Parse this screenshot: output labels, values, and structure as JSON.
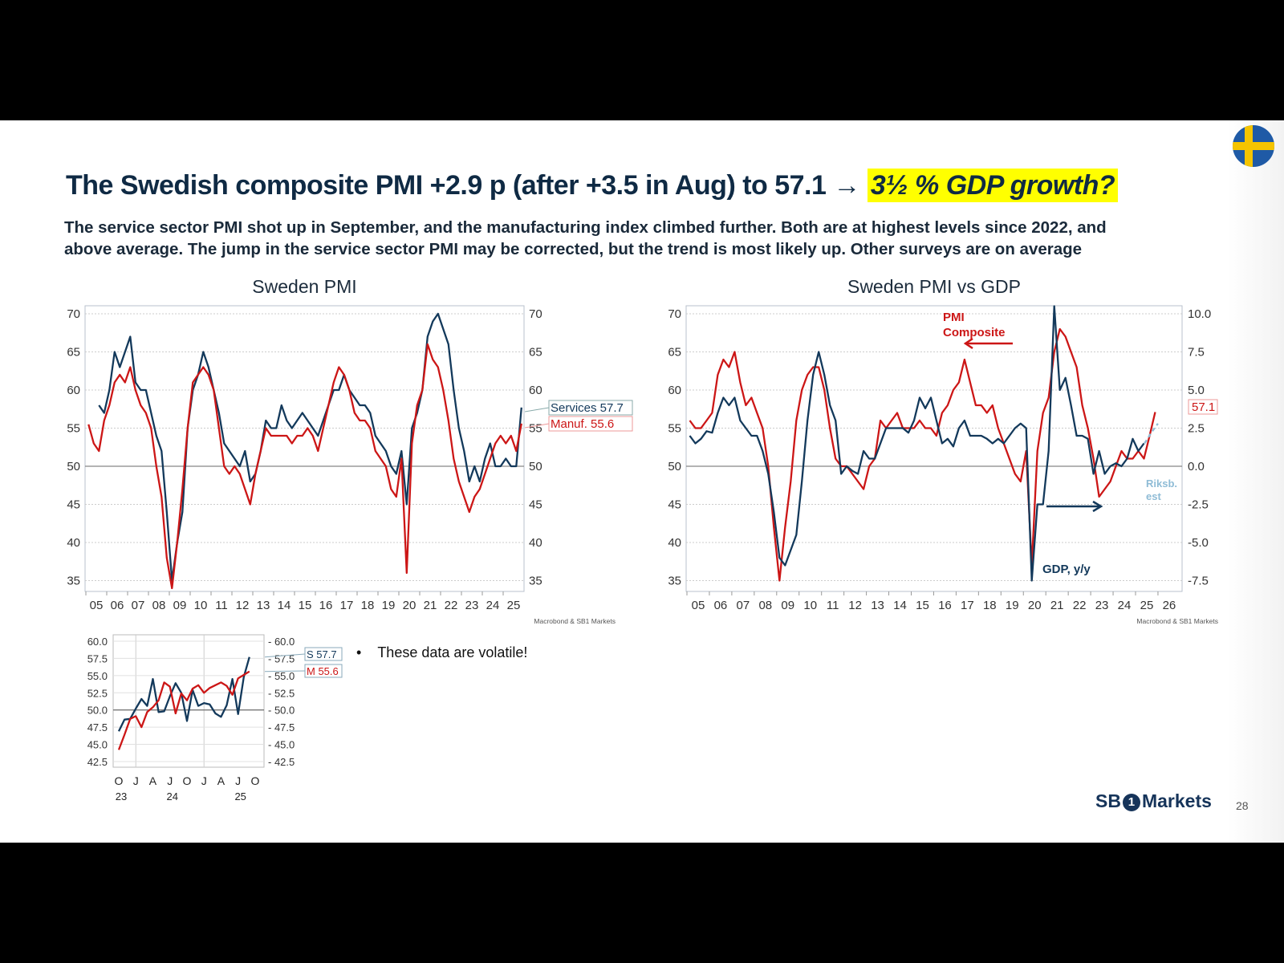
{
  "slide": {
    "title_main": "The Swedish composite PMI +2.9 p (after +3.5 in Aug) to 57.1 → ",
    "title_highlight": "3½ % GDP growth?",
    "subtitle_line1": "The service sector PMI shot up in September, and the manufacturing index climbed further. Both are at highest levels since 2022, and",
    "subtitle_line2": "above average. The jump in the service sector PMI may be corrected, but the trend is most likely up. Other surveys are on average",
    "bullet": "These data are volatile!",
    "logo_text_left": "SB",
    "logo_text_one": "1",
    "logo_text_right": "Markets",
    "page_number": "28",
    "flag_icon": "sweden-flag-icon",
    "colors": {
      "navy": "#13395b",
      "red": "#cc1616",
      "light_blue": "#8fbcd6",
      "title": "#0f2a44",
      "highlight": "#ffff00"
    }
  },
  "chart_data": [
    {
      "type": "line",
      "title": "Sweden PMI",
      "source": "Macrobond & SB1 Markets",
      "ylim": [
        34,
        71
      ],
      "yticks": [
        70,
        65,
        60,
        55,
        50,
        45,
        40,
        35
      ],
      "xticks": [
        "05",
        "06",
        "07",
        "08",
        "09",
        "10",
        "11",
        "12",
        "13",
        "14",
        "15",
        "16",
        "17",
        "18",
        "19",
        "20",
        "21",
        "22",
        "23",
        "24",
        "25"
      ],
      "x_start": 2005.125,
      "x_step": 0.25,
      "grid": true,
      "series": [
        {
          "name": "Services",
          "color": "#13395b",
          "last_label": "Services 57.7",
          "values": [
            null,
            null,
            58,
            57,
            60,
            65,
            63,
            65,
            67,
            61,
            60,
            60,
            57,
            54,
            52,
            44,
            35,
            40,
            44,
            55,
            60,
            62,
            65,
            63,
            60,
            57,
            53,
            52,
            51,
            50,
            52,
            48,
            49,
            52,
            56,
            55,
            55,
            58,
            56,
            55,
            56,
            57,
            56,
            55,
            54,
            56,
            58,
            60,
            60,
            62,
            60,
            59,
            58,
            58,
            57,
            54,
            53,
            52,
            50,
            49,
            52,
            45,
            55,
            57,
            60,
            67,
            69,
            70,
            68,
            66,
            60,
            55,
            52,
            48,
            50,
            48,
            51,
            53,
            50,
            50,
            51,
            50,
            50,
            57.7
          ]
        },
        {
          "name": "Manuf.",
          "color": "#cc1616",
          "last_label": "Manuf. 55.6",
          "values": [
            55.5,
            53,
            52,
            56,
            58,
            61,
            62,
            61,
            63,
            60,
            58,
            57,
            55,
            50,
            46,
            38,
            34,
            40,
            47,
            55,
            61,
            62,
            63,
            62,
            60,
            55,
            50,
            49,
            50,
            49,
            47,
            45,
            49,
            52,
            55,
            54,
            54,
            54,
            54,
            53,
            54,
            54,
            55,
            54,
            52,
            55,
            58,
            61,
            63,
            62,
            60,
            57,
            56,
            56,
            55,
            52,
            51,
            50,
            47,
            46,
            51,
            36,
            53,
            58,
            60,
            66,
            64,
            63,
            60,
            56,
            51,
            48,
            46,
            44,
            46,
            47,
            49,
            51,
            53,
            54,
            53,
            54,
            52,
            55.6
          ]
        }
      ]
    },
    {
      "type": "line",
      "title": "Sweden PMI vs GDP",
      "source": "Macrobond & SB1 Markets",
      "ylim": [
        34,
        71
      ],
      "y2lim": [
        -8,
        10.5
      ],
      "yticks": [
        70,
        65,
        60,
        55,
        50,
        45,
        40,
        35
      ],
      "y2ticks": [
        "10.0",
        "7.5",
        "5.0",
        "2.5",
        "0.0",
        "-2.5",
        "-5.0",
        "-7.5"
      ],
      "xticks": [
        "05",
        "06",
        "07",
        "08",
        "09",
        "10",
        "11",
        "12",
        "13",
        "14",
        "15",
        "16",
        "17",
        "18",
        "19",
        "20",
        "21",
        "22",
        "23",
        "24",
        "25",
        "26"
      ],
      "x_start": 2005.125,
      "x_step": 0.25,
      "grid": true,
      "annotations": {
        "pmi_label_1": "PMI",
        "pmi_label_2": "Composite",
        "gdp_label": "GDP, y/y",
        "riksb_1": "Riksb.",
        "riksb_2": "est",
        "last_value": "57.1"
      },
      "series": [
        {
          "name": "PMI Composite",
          "axis": "left",
          "color": "#cc1616",
          "values": [
            56,
            55,
            55,
            56,
            57,
            62,
            64,
            63,
            65,
            61,
            58,
            59,
            57,
            55,
            50,
            42,
            35,
            42,
            48,
            56,
            60,
            62,
            63,
            63,
            60,
            55,
            51,
            50,
            50,
            49,
            48,
            47,
            50,
            51,
            56,
            55,
            56,
            57,
            55,
            55,
            55,
            56,
            55,
            55,
            54,
            57,
            58,
            60,
            61,
            64,
            61,
            58,
            58,
            57,
            58,
            55,
            53,
            51,
            49,
            48,
            52,
            37,
            52,
            57,
            59,
            65,
            68,
            67,
            65,
            63,
            58,
            55,
            51,
            46,
            47,
            48,
            50,
            52,
            51,
            51,
            52,
            51,
            54,
            57.1
          ]
        },
        {
          "name": "GDP, y/y",
          "axis": "right",
          "color": "#13395b",
          "values": [
            2.0,
            1.5,
            1.8,
            2.3,
            2.2,
            3.5,
            4.5,
            4.0,
            4.5,
            3.0,
            2.5,
            2.0,
            2.0,
            1.0,
            -0.5,
            -3.0,
            -6.0,
            -6.5,
            -5.5,
            -4.5,
            -1.0,
            3.0,
            6.0,
            7.5,
            6.0,
            4.0,
            3.0,
            -0.5,
            0.0,
            -0.3,
            -0.5,
            1.0,
            0.5,
            0.5,
            1.5,
            2.5,
            2.5,
            2.5,
            2.5,
            2.2,
            3.0,
            4.5,
            3.8,
            4.5,
            3.0,
            1.5,
            1.8,
            1.3,
            2.5,
            3.0,
            2.0,
            2.0,
            2.0,
            1.8,
            1.5,
            1.8,
            1.5,
            2.0,
            2.5,
            2.8,
            2.5,
            -7.5,
            -2.5,
            -2.5,
            1.0,
            10.5,
            5.0,
            5.8,
            4.0,
            2.0,
            2.0,
            1.8,
            -0.5,
            1.0,
            -0.5,
            0.0,
            0.2,
            0.0,
            0.5,
            1.8,
            1.0,
            1.5
          ]
        },
        {
          "name": "Riksbank est",
          "axis": "right",
          "color": "#8fbcd6",
          "dashed": true,
          "x": [
            2025.4,
            2025.7,
            2026.0
          ],
          "values": [
            1.5,
            2.2,
            2.8
          ]
        }
      ]
    },
    {
      "type": "line",
      "title": "",
      "ylim": [
        41.5,
        61
      ],
      "yticks": [
        "60.0",
        "57.5",
        "55.0",
        "52.5",
        "50.0",
        "47.5",
        "45.0",
        "42.5"
      ],
      "xticks": [
        "O",
        "J",
        "A",
        "J",
        "O",
        "J",
        "A",
        "J",
        "O"
      ],
      "xyears": [
        "23",
        "24",
        "25"
      ],
      "x_start_month": "2023-10",
      "grid": true,
      "series": [
        {
          "name": "S",
          "color": "#13395b",
          "last_label": "S 57.7",
          "values": [
            46.9,
            48.6,
            48.7,
            50.2,
            51.6,
            50.6,
            54.5,
            49.7,
            49.8,
            52.0,
            53.9,
            52.5,
            48.4,
            52.9,
            50.6,
            51.0,
            50.8,
            49.5,
            49.0,
            50.7,
            54.5,
            49.4,
            54.8,
            57.7
          ]
        },
        {
          "name": "M",
          "color": "#cc1616",
          "last_label": "M 55.6",
          "values": [
            44.2,
            46.4,
            48.7,
            49.1,
            47.5,
            49.7,
            50.4,
            51.4,
            54.0,
            53.4,
            49.5,
            52.4,
            51.4,
            53.1,
            53.6,
            52.5,
            53.2,
            53.6,
            54.0,
            53.5,
            52.2,
            54.6,
            55.1,
            55.6
          ]
        }
      ]
    }
  ]
}
